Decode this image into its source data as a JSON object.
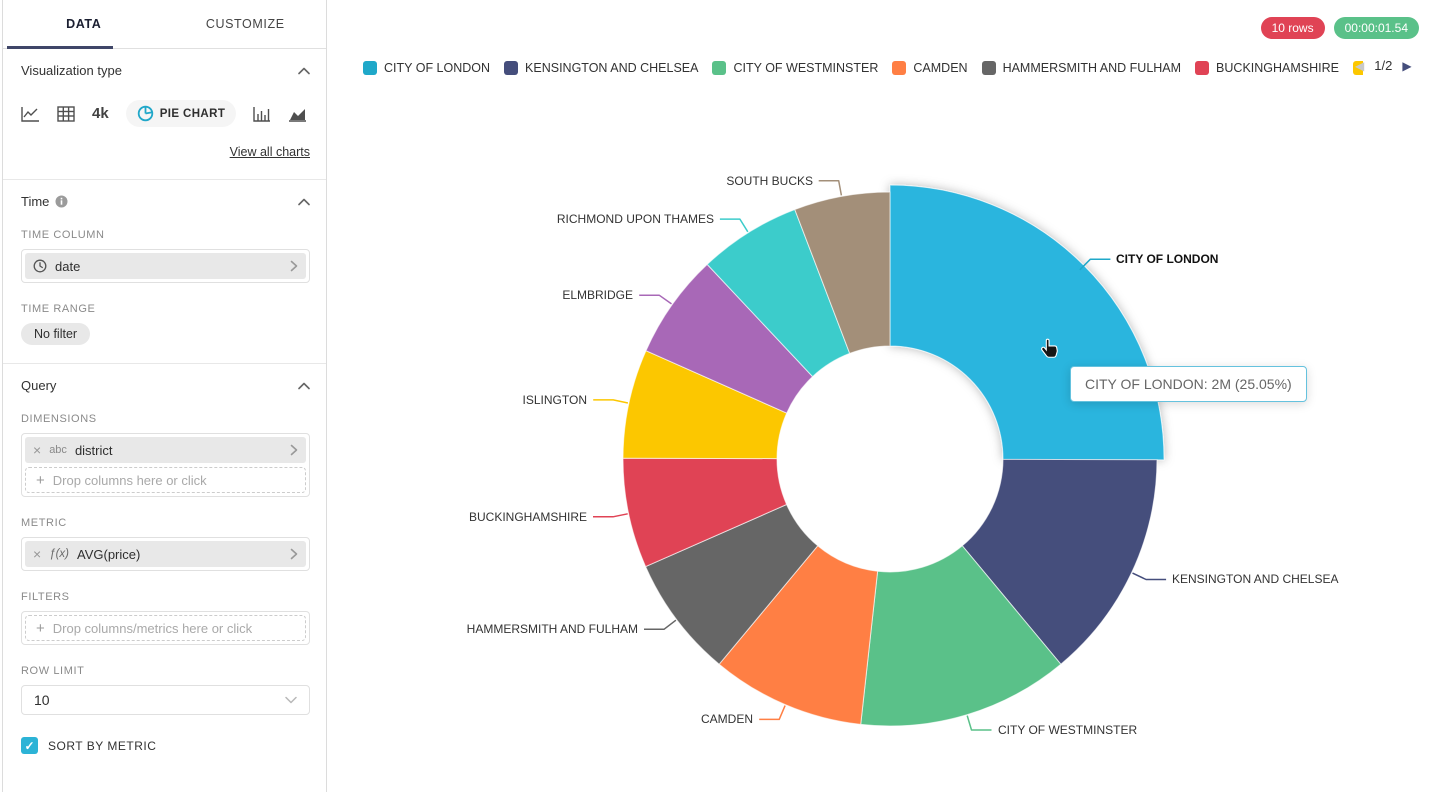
{
  "sidebar": {
    "tabs": {
      "data": "DATA",
      "customize": "CUSTOMIZE"
    },
    "viz_section": {
      "title": "Visualization type",
      "big_number_label": "4k",
      "selected_chart": "PIE CHART",
      "view_all": "View all charts"
    },
    "time_section": {
      "title": "Time",
      "time_column_label": "TIME COLUMN",
      "time_column_value": "date",
      "time_range_label": "TIME RANGE",
      "time_range_value": "No filter"
    },
    "query_section": {
      "title": "Query",
      "dimensions_label": "DIMENSIONS",
      "dimension_type": "abc",
      "dimension_value": "district",
      "drop_columns_placeholder": "Drop columns here or click",
      "metric_label": "METRIC",
      "metric_fn": "ƒ(x)",
      "metric_value": "AVG(price)",
      "filters_label": "FILTERS",
      "drop_filters_placeholder": "Drop columns/metrics here or click",
      "row_limit_label": "ROW LIMIT",
      "row_limit_value": "10",
      "sort_label": "SORT BY METRIC",
      "checkbox_color": "#2CB3D6"
    }
  },
  "header": {
    "rows_badge": {
      "text": "10 rows",
      "color": "#E04355"
    },
    "timer_badge": {
      "text": "00:00:01.54",
      "color": "#5AC189"
    }
  },
  "legend": {
    "items": [
      {
        "label": "CITY OF LONDON",
        "color": "#1FA8C9"
      },
      {
        "label": "KENSINGTON AND CHELSEA",
        "color": "#454E7C"
      },
      {
        "label": "CITY OF WESTMINSTER",
        "color": "#5AC189"
      },
      {
        "label": "CAMDEN",
        "color": "#FF7F44"
      },
      {
        "label": "HAMMERSMITH AND FULHAM",
        "color": "#666666"
      },
      {
        "label": "BUCKINGHAMSHIRE",
        "color": "#E04355"
      },
      {
        "label": "",
        "color": "#FCC700"
      }
    ],
    "pagination": {
      "current": "1/2",
      "prev_enabled": false,
      "next_enabled": true
    }
  },
  "tooltip": {
    "text": "CITY OF LONDON: 2M (25.05%)"
  },
  "chart_data": {
    "type": "pie",
    "subtype": "donut",
    "dimension": "district",
    "metric": "AVG(price)",
    "start_angle_deg": 0,
    "clockwise": true,
    "legend_position": "top",
    "slices": [
      {
        "label": "CITY OF LONDON",
        "percent": 25.05,
        "display_value": "2M",
        "color": "#1FA8C9",
        "hover_fill": "#29B5DE",
        "hovered": true
      },
      {
        "label": "KENSINGTON AND CHELSEA",
        "percent": 13.9,
        "color": "#454E7C"
      },
      {
        "label": "CITY OF WESTMINSTER",
        "percent": 12.8,
        "color": "#5AC189"
      },
      {
        "label": "CAMDEN",
        "percent": 9.3,
        "color": "#FF7F44"
      },
      {
        "label": "HAMMERSMITH AND FULHAM",
        "percent": 7.35,
        "color": "#666666"
      },
      {
        "label": "BUCKINGHAMSHIRE",
        "percent": 6.65,
        "color": "#E04355"
      },
      {
        "label": "ISLINGTON",
        "percent": 6.6,
        "color": "#FCC700"
      },
      {
        "label": "ELMBRIDGE",
        "percent": 6.35,
        "color": "#A868B7"
      },
      {
        "label": "RICHMOND UPON THAMES",
        "percent": 6.2,
        "color": "#3CCCCB"
      },
      {
        "label": "SOUTH BUCKS",
        "percent": 5.8,
        "color": "#A38F79"
      }
    ]
  }
}
